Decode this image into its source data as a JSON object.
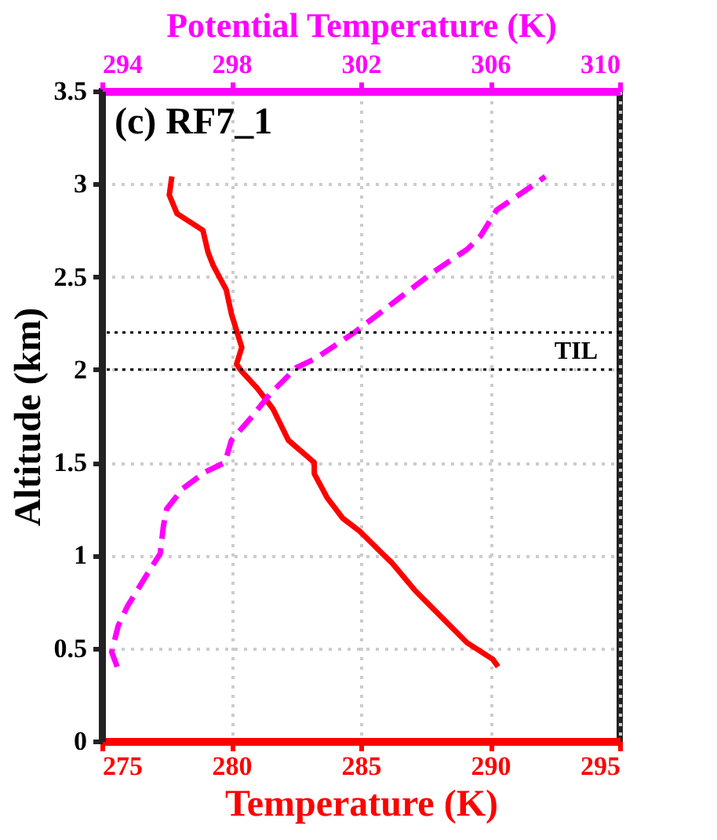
{
  "chart_data": {
    "type": "line",
    "title": "(c) RF7_1",
    "xlabel": "Temperature (K)",
    "x2label": "Potential Temperature (K)",
    "ylabel": "Altitude (km)",
    "xlim": [
      275,
      295
    ],
    "xticks": [
      275,
      280,
      285,
      290,
      295
    ],
    "x2lim": [
      294,
      310
    ],
    "x2ticks": [
      294,
      298,
      302,
      306,
      310
    ],
    "ylim": [
      0,
      3.5
    ],
    "yticks": [
      0,
      0.5,
      1,
      1.5,
      2,
      2.5,
      3,
      3.5
    ],
    "grid": true,
    "marker": "none",
    "series": [
      {
        "color": "#ff0000",
        "line_style": "solid",
        "x": [
          290.3,
          290.1,
          289.1,
          288.1,
          287.1,
          286.2,
          285.9,
          284.96,
          284.3,
          283.7,
          283.2,
          283.2,
          282.2,
          281.6,
          281.0,
          280.4,
          280.2,
          280.4,
          280.0,
          279.8,
          279.3,
          279.1,
          278.9,
          277.9,
          277.6,
          277.7
        ],
        "values": [
          0.4,
          0.44,
          0.53,
          0.67,
          0.81,
          0.96,
          1.0,
          1.13,
          1.2,
          1.31,
          1.44,
          1.5,
          1.62,
          1.79,
          1.9,
          1.99,
          2.03,
          2.12,
          2.3,
          2.43,
          2.56,
          2.63,
          2.75,
          2.84,
          2.94,
          3.04
        ]
      },
      {
        "color": "#ff00ff",
        "line_style": "dashed",
        "axis": "x2",
        "x": [
          294.47,
          294.3,
          294.5,
          294.8,
          295.4,
          295.8,
          295.9,
          296.0,
          296.5,
          297.2,
          297.8,
          298.0,
          298.6,
          299.2,
          300.0,
          300.6,
          301.8,
          303.3,
          304.2,
          305.3,
          305.7,
          306.2,
          307.3,
          307.7
        ],
        "values": [
          0.4,
          0.48,
          0.62,
          0.73,
          0.9,
          1.01,
          1.16,
          1.25,
          1.36,
          1.45,
          1.5,
          1.62,
          1.74,
          1.87,
          2.01,
          2.06,
          2.2,
          2.4,
          2.52,
          2.65,
          2.72,
          2.86,
          2.99,
          3.04
        ]
      }
    ],
    "ref_lines": [
      {
        "axis": "y",
        "value": 2.2,
        "color": "#000000",
        "line_style": "dotted"
      },
      {
        "axis": "y",
        "value": 2.0,
        "color": "#000000",
        "line_style": "dotted"
      }
    ],
    "annotations": [
      "TIL"
    ]
  }
}
